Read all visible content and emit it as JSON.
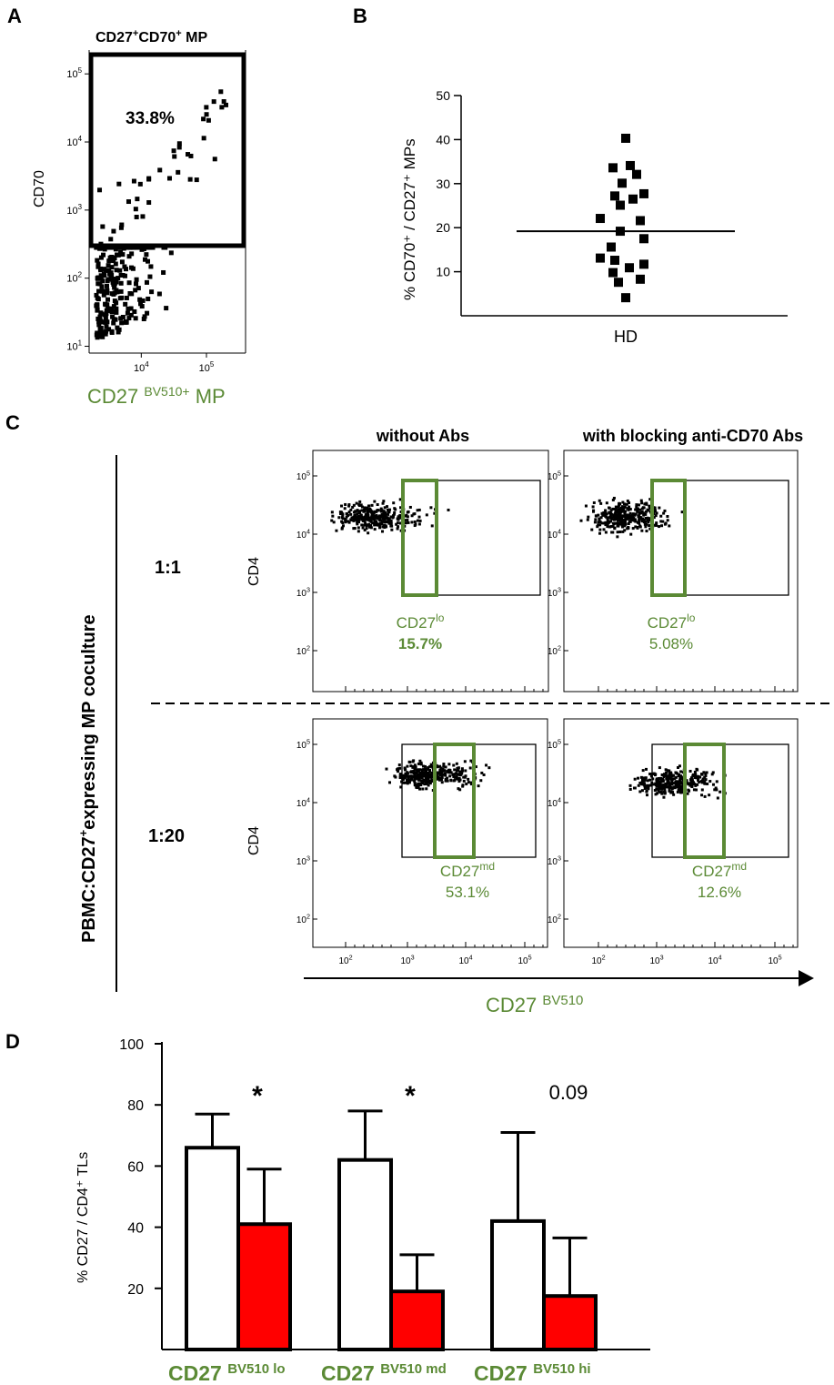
{
  "panels": {
    "a": "A",
    "b": "B",
    "c": "C",
    "d": "D"
  },
  "colors": {
    "green": "#5b8a35",
    "red": "#ff0000",
    "black": "#000000"
  },
  "chart_data": [
    {
      "id": "A",
      "type": "scatter",
      "scale": "log",
      "title_base": "CD27",
      "title_sup1": "+",
      "title_mid": "CD70",
      "title_sup2": "+",
      "title_end": " MP",
      "ylabel": "CD70",
      "xlabel_base": "CD27 ",
      "xlabel_sup": "BV510+",
      "xlabel_end": " MP",
      "gate_label": "33.8%",
      "xticks": [
        {
          "b": "10",
          "e": "4"
        },
        {
          "b": "10",
          "e": "5"
        }
      ],
      "yticks": [
        {
          "b": "10",
          "e": "1"
        },
        {
          "b": "10",
          "e": "2"
        },
        {
          "b": "10",
          "e": "3"
        },
        {
          "b": "10",
          "e": "4"
        },
        {
          "b": "10",
          "e": "5"
        }
      ],
      "xlim_log": [
        3.2,
        5.6
      ],
      "ylim_log": [
        0.9,
        5.35
      ]
    },
    {
      "id": "B",
      "type": "scatter",
      "ylabel": "% CD70⁺ / CD27⁺ MPs",
      "xlabel": "HD",
      "ylim": [
        0,
        50
      ],
      "yticks": [
        "10",
        "20",
        "30",
        "40",
        "50"
      ],
      "values": [
        40.3,
        34.1,
        33.6,
        32.1,
        30.1,
        27.7,
        27.2,
        26.5,
        25.1,
        22.1,
        21.6,
        19.2,
        17.5,
        15.6,
        13.1,
        12.6,
        11.7,
        10.9,
        9.8,
        8.3,
        7.6,
        4.1
      ],
      "mean": 19.2
    },
    {
      "id": "C",
      "type": "scatter",
      "scale": "log",
      "side_label_pre": "PBMC:CD27",
      "side_label_sup": "+",
      "side_label_post": "expressing MP coculture",
      "col_headers": [
        "without Abs",
        "with blocking anti-CD70 Abs"
      ],
      "row_labels": [
        "1:1",
        "1:20"
      ],
      "ylabel": "CD4",
      "xlabel_base": "CD27 ",
      "xlabel_sup": "BV510",
      "ticks": [
        {
          "b": "10",
          "e": "2"
        },
        {
          "b": "10",
          "e": "3"
        },
        {
          "b": "10",
          "e": "4"
        },
        {
          "b": "10",
          "e": "5"
        }
      ],
      "gates": [
        {
          "name_base": "CD27",
          "name_sup": "lo",
          "value": "15.7%"
        },
        {
          "name_base": "CD27",
          "name_sup": "lo",
          "value": "5.08%"
        },
        {
          "name_base": "CD27",
          "name_sup": "md",
          "value": "53.1%"
        },
        {
          "name_base": "CD27",
          "name_sup": "md",
          "value": "12.6%"
        }
      ]
    },
    {
      "id": "D",
      "type": "bar",
      "ylabel": "% CD27 / CD4⁺ TLs",
      "ylim": [
        0,
        100
      ],
      "yticks": [
        "20",
        "40",
        "60",
        "80",
        "100"
      ],
      "groups": [
        {
          "label_base": "CD27 ",
          "label_sup": "BV510 lo",
          "values": [
            66,
            41
          ],
          "errors": [
            11,
            18
          ],
          "annotation": "*"
        },
        {
          "label_base": "CD27 ",
          "label_sup": "BV510 md",
          "values": [
            62,
            19
          ],
          "errors": [
            16,
            12
          ],
          "annotation": "*"
        },
        {
          "label_base": "CD27 ",
          "label_sup": "BV510 hi",
          "values": [
            42,
            17.5
          ],
          "errors": [
            29,
            19
          ],
          "annotation": "0.09"
        }
      ],
      "series": [
        {
          "name": "without Abs",
          "color": "#ffffff"
        },
        {
          "name": "with blocking anti-CD70 Abs",
          "color": "#ff0000"
        }
      ]
    }
  ]
}
